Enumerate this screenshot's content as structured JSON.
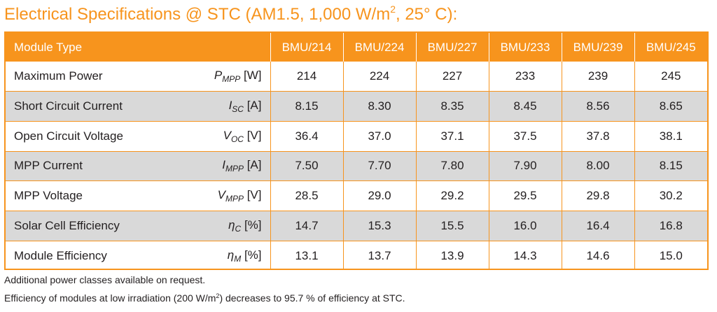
{
  "title": {
    "prefix": "Electrical Specifications @ STC (AM1.5, 1,000 W/m",
    "sup": "2",
    "suffix": ", 25° C):"
  },
  "table": {
    "header_label": "Module Type",
    "models": [
      "BMU/214",
      "BMU/224",
      "BMU/227",
      "BMU/233",
      "BMU/239",
      "BMU/245"
    ],
    "rows": [
      {
        "label": "Maximum Power",
        "sym": "P",
        "sub": "MPP",
        "unit": "[W]",
        "values": [
          "214",
          "224",
          "227",
          "233",
          "239",
          "245"
        ]
      },
      {
        "label": "Short Circuit Current",
        "sym": "I",
        "sub": "SC",
        "unit": "[A]",
        "values": [
          "8.15",
          "8.30",
          "8.35",
          "8.45",
          "8.56",
          "8.65"
        ]
      },
      {
        "label": "Open Circuit Voltage",
        "sym": "V",
        "sub": "OC",
        "unit": "[V]",
        "values": [
          "36.4",
          "37.0",
          "37.1",
          "37.5",
          "37.8",
          "38.1"
        ]
      },
      {
        "label": "MPP Current",
        "sym": "I",
        "sub": "MPP",
        "unit": "[A]",
        "values": [
          "7.50",
          "7.70",
          "7.80",
          "7.90",
          "8.00",
          "8.15"
        ]
      },
      {
        "label": "MPP Voltage",
        "sym": "V",
        "sub": "MPP",
        "unit": "[V]",
        "values": [
          "28.5",
          "29.0",
          "29.2",
          "29.5",
          "29.8",
          "30.2"
        ]
      },
      {
        "label": "Solar Cell Efficiency",
        "sym": "η",
        "sub": "C",
        "unit": "[%]",
        "values": [
          "14.7",
          "15.3",
          "15.5",
          "16.0",
          "16.4",
          "16.8"
        ]
      },
      {
        "label": "Module Efficiency",
        "sym": "η",
        "sub": "M",
        "unit": "[%]",
        "values": [
          "13.1",
          "13.7",
          "13.9",
          "14.3",
          "14.6",
          "15.0"
        ]
      }
    ]
  },
  "notes": {
    "line1": "Additional power classes available on request.",
    "line2_prefix": "Efficiency of modules at low irradiation (200 W/m",
    "line2_sup": "2",
    "line2_suffix": ") decreases to 95.7 % of efficiency at STC."
  },
  "colors": {
    "accent": "#f7941d",
    "shaded_row": "#d9d9d9",
    "text": "#231f20"
  }
}
